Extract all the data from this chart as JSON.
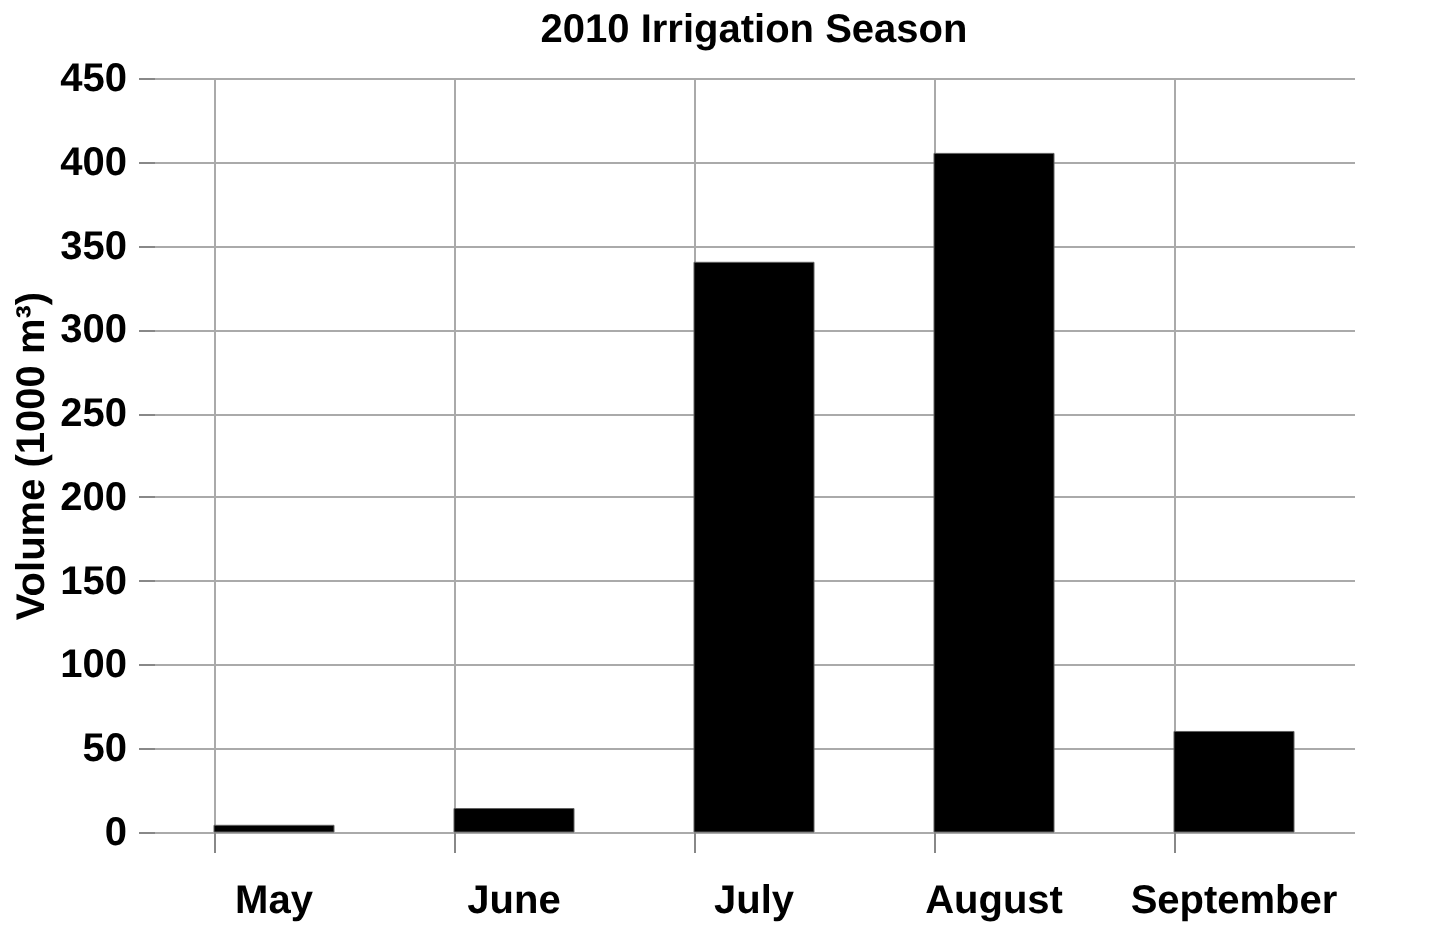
{
  "chart_data": {
    "type": "bar",
    "title": "2010 Irrigation Season",
    "ylabel": "Volume (1000 m³)",
    "categories": [
      "May",
      "June",
      "July",
      "August",
      "September"
    ],
    "values": [
      4,
      14,
      340,
      405,
      60
    ],
    "color": "#000000",
    "ylim": [
      0,
      450
    ],
    "yticks": [
      0,
      50,
      100,
      150,
      200,
      250,
      300,
      350,
      400,
      450
    ],
    "grid": true
  }
}
